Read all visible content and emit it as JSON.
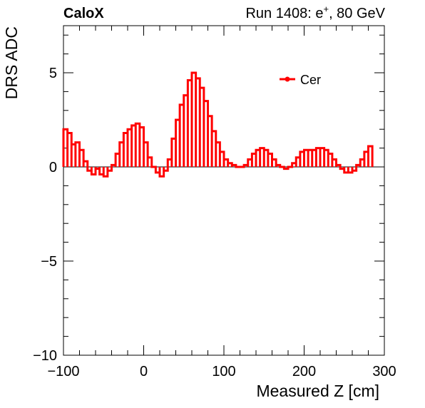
{
  "header": {
    "experiment": "CaloX",
    "run_prefix": "Run 1408: e",
    "run_sup": "+",
    "run_suffix": ", 80 GeV"
  },
  "chart_data": {
    "type": "line",
    "style": "step",
    "xlabel": "Measured Z [cm]",
    "ylabel": "DRS ADC",
    "xlim": [
      -100,
      300
    ],
    "ylim": [
      -10,
      7.5
    ],
    "x_ticks": [
      "−100",
      "0",
      "100",
      "200",
      "300"
    ],
    "y_ticks": [
      "−10",
      "−5",
      "0",
      "5"
    ],
    "grid": false,
    "legend_position": "top-right",
    "series": [
      {
        "name": "Cer",
        "color": "#ff0000",
        "bin_width": 5,
        "x_start": -100,
        "values": [
          2.0,
          1.8,
          1.2,
          1.3,
          0.9,
          0.3,
          -0.2,
          -0.4,
          -0.1,
          -0.4,
          -0.5,
          -0.2,
          0.1,
          0.7,
          1.3,
          1.8,
          2.0,
          2.2,
          2.3,
          2.1,
          1.3,
          0.5,
          0.0,
          -0.3,
          -0.5,
          -0.2,
          0.4,
          1.5,
          2.5,
          3.3,
          3.8,
          4.6,
          5.0,
          4.7,
          4.2,
          3.5,
          2.7,
          1.9,
          1.3,
          0.8,
          0.4,
          0.2,
          0.1,
          0.0,
          0.0,
          0.1,
          0.4,
          0.7,
          0.9,
          1.0,
          0.9,
          0.7,
          0.4,
          0.1,
          0.0,
          -0.1,
          0.0,
          0.2,
          0.5,
          0.8,
          0.9,
          0.9,
          0.9,
          1.0,
          1.0,
          0.9,
          0.7,
          0.4,
          0.1,
          -0.1,
          -0.3,
          -0.3,
          -0.2,
          0.1,
          0.4,
          0.8,
          1.1
        ]
      }
    ]
  }
}
